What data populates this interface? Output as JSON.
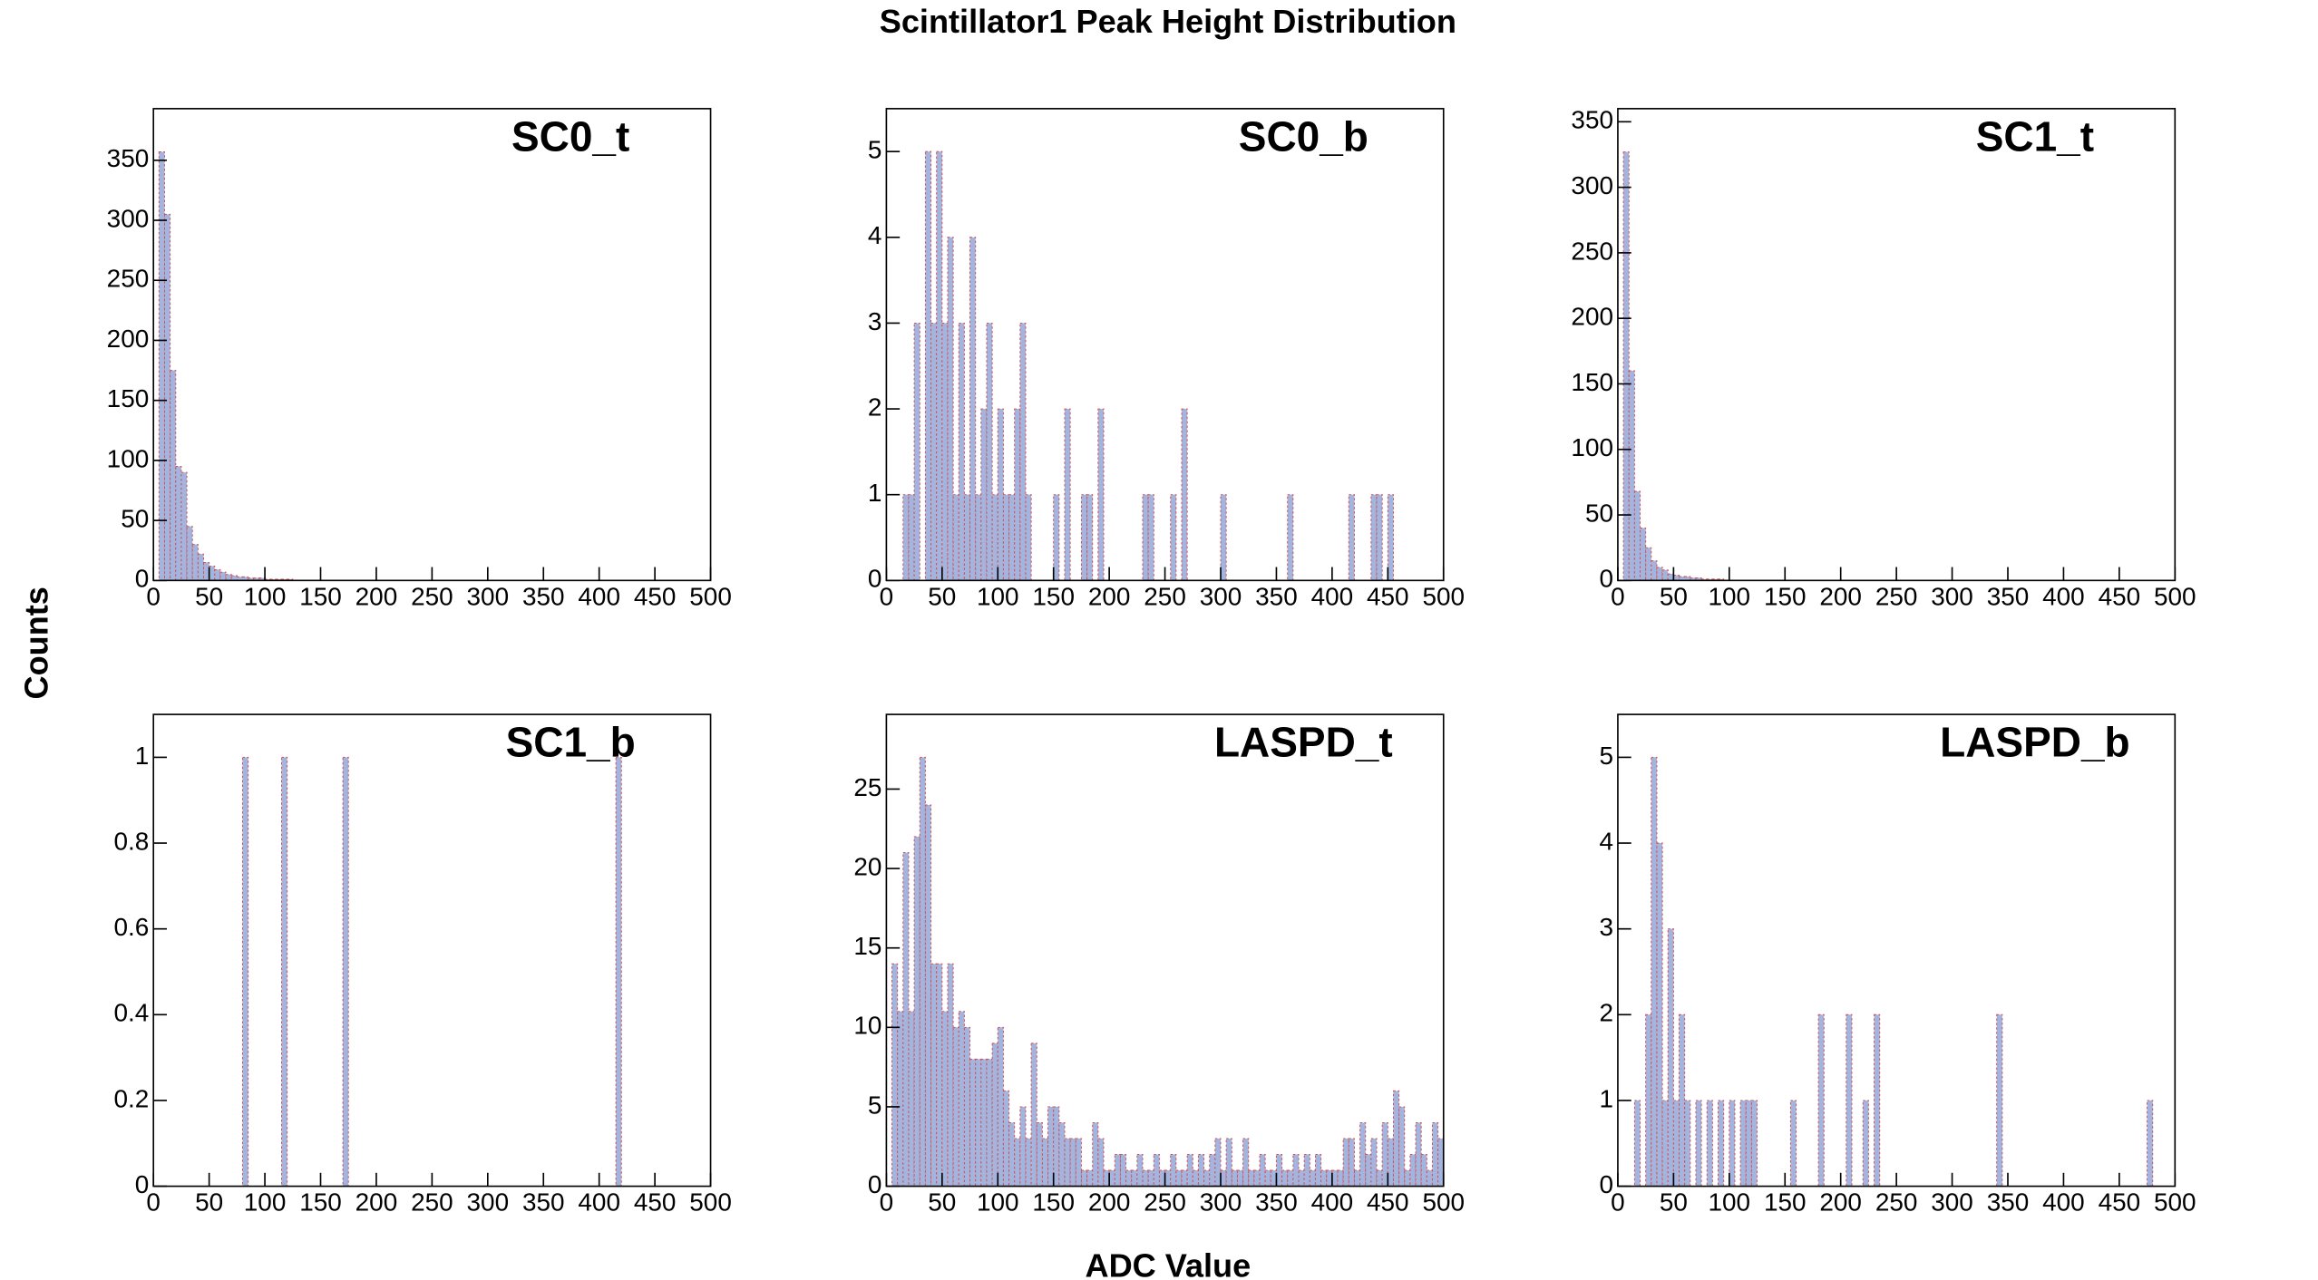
{
  "title": "Scintillator1 Peak Height Distribution",
  "x_label": "ADC Value",
  "y_label": "Counts",
  "chart_data": [
    {
      "type": "histogram",
      "title": "SC0_t",
      "color": "#a3b4de",
      "edge_color": "#d25050",
      "bins": [
        5,
        10,
        15,
        20,
        25,
        30,
        35,
        40,
        45,
        50,
        55,
        60,
        65,
        70,
        75,
        80,
        85,
        90,
        95,
        100,
        105,
        110,
        115,
        120,
        125
      ],
      "counts": [
        357,
        305,
        175,
        95,
        90,
        45,
        30,
        22,
        15,
        12,
        9,
        7,
        5,
        4,
        3,
        3,
        2,
        2,
        2,
        1,
        1,
        1,
        1,
        1
      ],
      "xlim": [
        0,
        500
      ],
      "xticks": [
        0,
        50,
        100,
        150,
        200,
        250,
        300,
        350,
        400,
        450,
        500
      ],
      "ylim": [
        0,
        393
      ],
      "yticks": [
        0,
        50,
        100,
        150,
        200,
        250,
        300,
        350
      ]
    },
    {
      "type": "histogram",
      "title": "SC0_b",
      "color": "#a3b4de",
      "edge_color": "#d25050",
      "bins": [
        15,
        20,
        25,
        30,
        35,
        40,
        45,
        50,
        55,
        60,
        65,
        70,
        75,
        80,
        85,
        90,
        95,
        100,
        105,
        110,
        115,
        120,
        125,
        130,
        135,
        140,
        145,
        150,
        155,
        160,
        165,
        170,
        175,
        180,
        185,
        190,
        195,
        200,
        205,
        210,
        215,
        220,
        225,
        230,
        235,
        240,
        245,
        250,
        255,
        260,
        265,
        270,
        275,
        280,
        285,
        290,
        295,
        300,
        305,
        310,
        315,
        320,
        325,
        330,
        335,
        340,
        345,
        350,
        355,
        360,
        365,
        370,
        375,
        380,
        385,
        390,
        395,
        400,
        405,
        410,
        415,
        420,
        425,
        430,
        435,
        440,
        445,
        450,
        455
      ],
      "counts": [
        1,
        1,
        3,
        0,
        5,
        3,
        5,
        3,
        4,
        1,
        3,
        1,
        4,
        1,
        2,
        3,
        1,
        2,
        1,
        1,
        2,
        3,
        1,
        0,
        0,
        0,
        0,
        1,
        0,
        2,
        0,
        0,
        1,
        1,
        0,
        2,
        0,
        0,
        0,
        0,
        0,
        0,
        0,
        1,
        1,
        0,
        0,
        0,
        1,
        0,
        2,
        0,
        0,
        0,
        0,
        0,
        0,
        1,
        0,
        0,
        0,
        0,
        0,
        0,
        0,
        0,
        0,
        0,
        0,
        1,
        0,
        0,
        0,
        0,
        0,
        0,
        0,
        0,
        0,
        0,
        1,
        0,
        0,
        0,
        1,
        1,
        0,
        1
      ],
      "xlim": [
        0,
        500
      ],
      "xticks": [
        0,
        50,
        100,
        150,
        200,
        250,
        300,
        350,
        400,
        450,
        500
      ],
      "ylim": [
        0,
        5.5
      ],
      "yticks": [
        0,
        1,
        2,
        3,
        4,
        5
      ]
    },
    {
      "type": "histogram",
      "title": "SC1_t",
      "color": "#a3b4de",
      "edge_color": "#d25050",
      "bins": [
        5,
        10,
        15,
        20,
        25,
        30,
        35,
        40,
        45,
        50,
        55,
        60,
        65,
        70,
        75,
        80,
        85,
        90,
        95
      ],
      "counts": [
        327,
        160,
        68,
        40,
        25,
        15,
        10,
        8,
        5,
        4,
        3,
        3,
        2,
        2,
        1,
        1,
        1,
        1
      ],
      "xlim": [
        0,
        500
      ],
      "xticks": [
        0,
        50,
        100,
        150,
        200,
        250,
        300,
        350,
        400,
        450,
        500
      ],
      "ylim": [
        0,
        360
      ],
      "yticks": [
        0,
        50,
        100,
        150,
        200,
        250,
        300,
        350
      ]
    },
    {
      "type": "histogram",
      "title": "SC1_b",
      "color": "#a3b4de",
      "edge_color": "#d25050",
      "bins": [
        80,
        85,
        90,
        95,
        100,
        105,
        110,
        115,
        120,
        125,
        130,
        135,
        140,
        145,
        150,
        155,
        160,
        165,
        170,
        175,
        180,
        185,
        190,
        195,
        200,
        205,
        210,
        215,
        220,
        225,
        230,
        235,
        240,
        245,
        250,
        255,
        260,
        265,
        270,
        275,
        280,
        285,
        290,
        295,
        300,
        305,
        310,
        315,
        320,
        325,
        330,
        335,
        340,
        345,
        350,
        355,
        360,
        365,
        370,
        375,
        380,
        385,
        390,
        395,
        400,
        405,
        410,
        415,
        420
      ],
      "counts": [
        1,
        0,
        0,
        0,
        0,
        0,
        0,
        1,
        0,
        0,
        0,
        0,
        0,
        0,
        0,
        0,
        0,
        0,
        1,
        0,
        0,
        0,
        0,
        0,
        0,
        0,
        0,
        0,
        0,
        0,
        0,
        0,
        0,
        0,
        0,
        0,
        0,
        0,
        0,
        0,
        0,
        0,
        0,
        0,
        0,
        0,
        0,
        0,
        0,
        0,
        0,
        0,
        0,
        0,
        0,
        0,
        0,
        0,
        0,
        0,
        0,
        0,
        0,
        0,
        0,
        0,
        0,
        1
      ],
      "xlim": [
        0,
        500
      ],
      "xticks": [
        0,
        50,
        100,
        150,
        200,
        250,
        300,
        350,
        400,
        450,
        500
      ],
      "ylim": [
        0,
        1.1
      ],
      "yticks": [
        0,
        0.2,
        0.4,
        0.6,
        0.8,
        1
      ]
    },
    {
      "type": "histogram",
      "title": "LASPD_t",
      "color": "#a3b4de",
      "edge_color": "#d25050",
      "bins": [
        5,
        10,
        15,
        20,
        25,
        30,
        35,
        40,
        45,
        50,
        55,
        60,
        65,
        70,
        75,
        80,
        85,
        90,
        95,
        100,
        105,
        110,
        115,
        120,
        125,
        130,
        135,
        140,
        145,
        150,
        155,
        160,
        165,
        170,
        175,
        180,
        185,
        190,
        195,
        200,
        205,
        210,
        215,
        220,
        225,
        230,
        235,
        240,
        245,
        250,
        255,
        260,
        265,
        270,
        275,
        280,
        285,
        290,
        295,
        300,
        305,
        310,
        315,
        320,
        325,
        330,
        335,
        340,
        345,
        350,
        355,
        360,
        365,
        370,
        375,
        380,
        385,
        390,
        395,
        400,
        405,
        410,
        415,
        420,
        425,
        430,
        435,
        440,
        445,
        450,
        455,
        460,
        465,
        470,
        475,
        480,
        485,
        490,
        495,
        500
      ],
      "counts": [
        14,
        11,
        21,
        11,
        22,
        27,
        24,
        14,
        14,
        11,
        14,
        10,
        11,
        10,
        8,
        8,
        8,
        8,
        9,
        10,
        6,
        4,
        3,
        5,
        3,
        9,
        4,
        3,
        5,
        5,
        4,
        3,
        3,
        3,
        1,
        1,
        4,
        3,
        1,
        1,
        2,
        2,
        1,
        1,
        2,
        1,
        1,
        2,
        1,
        1,
        2,
        1,
        1,
        2,
        1,
        2,
        1,
        2,
        3,
        1,
        3,
        1,
        1,
        3,
        1,
        1,
        2,
        1,
        1,
        2,
        1,
        1,
        2,
        1,
        2,
        1,
        2,
        1,
        1,
        1,
        1,
        3,
        3,
        1,
        4,
        2,
        3,
        1,
        4,
        3,
        6,
        5,
        1,
        2,
        4,
        2,
        1,
        4,
        3
      ],
      "xlim": [
        0,
        500
      ],
      "xticks": [
        0,
        50,
        100,
        150,
        200,
        250,
        300,
        350,
        400,
        450,
        500
      ],
      "ylim": [
        0,
        29.7
      ],
      "yticks": [
        0,
        5,
        10,
        15,
        20,
        25
      ]
    },
    {
      "type": "histogram",
      "title": "LASPD_b",
      "color": "#a3b4de",
      "edge_color": "#d25050",
      "bins": [
        15,
        20,
        25,
        30,
        35,
        40,
        45,
        50,
        55,
        60,
        65,
        70,
        75,
        80,
        85,
        90,
        95,
        100,
        105,
        110,
        115,
        120,
        125,
        130,
        135,
        140,
        145,
        150,
        155,
        160,
        165,
        170,
        175,
        180,
        185,
        190,
        195,
        200,
        205,
        210,
        215,
        220,
        225,
        230,
        235,
        240,
        245,
        250,
        255,
        260,
        265,
        270,
        275,
        280,
        285,
        290,
        295,
        300,
        305,
        310,
        315,
        320,
        325,
        330,
        335,
        340,
        345,
        350,
        355,
        360,
        365,
        370,
        375,
        380,
        385,
        390,
        395,
        400,
        405,
        410,
        415,
        420,
        425,
        430,
        435,
        440,
        445,
        450,
        455,
        460,
        465,
        470,
        475,
        480
      ],
      "counts": [
        1,
        0,
        2,
        5,
        4,
        1,
        3,
        1,
        2,
        1,
        0,
        1,
        0,
        1,
        0,
        1,
        0,
        1,
        0,
        1,
        1,
        1,
        0,
        0,
        0,
        0,
        0,
        0,
        1,
        0,
        0,
        0,
        0,
        2,
        0,
        0,
        0,
        0,
        2,
        0,
        0,
        1,
        0,
        2,
        0,
        0,
        0,
        0,
        0,
        0,
        0,
        0,
        0,
        0,
        0,
        0,
        0,
        0,
        0,
        0,
        0,
        0,
        0,
        0,
        0,
        2,
        0,
        0,
        0,
        0,
        0,
        0,
        0,
        0,
        0,
        0,
        0,
        0,
        0,
        0,
        0,
        0,
        0,
        0,
        0,
        0,
        0,
        0,
        0,
        0,
        0,
        0,
        1
      ],
      "xlim": [
        0,
        500
      ],
      "xticks": [
        0,
        50,
        100,
        150,
        200,
        250,
        300,
        350,
        400,
        450,
        500
      ],
      "ylim": [
        0,
        5.5
      ],
      "yticks": [
        0,
        1,
        2,
        3,
        4,
        5
      ]
    }
  ]
}
